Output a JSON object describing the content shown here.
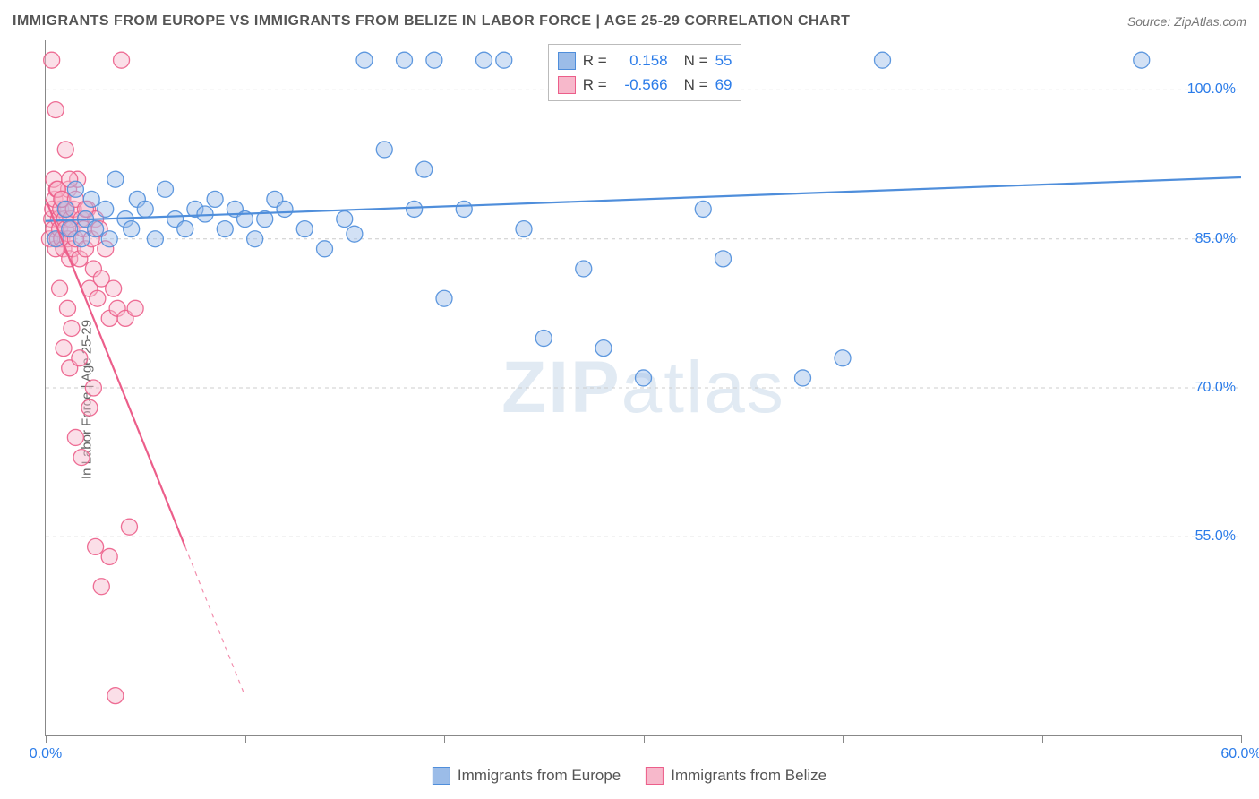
{
  "title": "IMMIGRANTS FROM EUROPE VS IMMIGRANTS FROM BELIZE IN LABOR FORCE | AGE 25-29 CORRELATION CHART",
  "source": "Source: ZipAtlas.com",
  "ylabel": "In Labor Force | Age 25-29",
  "watermark_a": "ZIP",
  "watermark_b": "atlas",
  "chart": {
    "type": "scatter-with-regression",
    "background_color": "#ffffff",
    "grid_color": "#cccccc",
    "axis_color": "#888888",
    "xlim": [
      0,
      60
    ],
    "ylim": [
      35,
      105
    ],
    "yticks": [
      55,
      70,
      85,
      100
    ],
    "ytick_labels": [
      "55.0%",
      "70.0%",
      "85.0%",
      "100.0%"
    ],
    "ytick_color": "#2b7ce9",
    "xticks": [
      0,
      30,
      60
    ],
    "xtick_labels": [
      "0.0%",
      "",
      "60.0%"
    ],
    "xtick_minor": [
      10,
      20,
      40,
      50
    ],
    "xtick_color": "#2b7ce9",
    "marker_radius": 9,
    "marker_opacity": 0.45,
    "line_width": 2.2,
    "label_fontsize": 15
  },
  "series_europe": {
    "name": "Immigrants from Europe",
    "color_fill": "#9bbce8",
    "color_stroke": "#4f8edb",
    "R": "0.158",
    "N": "55",
    "trend": {
      "x1": 0,
      "y1": 86.8,
      "x2": 60,
      "y2": 91.2
    },
    "points": [
      [
        0.5,
        85
      ],
      [
        1,
        88
      ],
      [
        1.2,
        86
      ],
      [
        1.5,
        90
      ],
      [
        1.8,
        85
      ],
      [
        2,
        87
      ],
      [
        2.3,
        89
      ],
      [
        2.5,
        86
      ],
      [
        3,
        88
      ],
      [
        3.2,
        85
      ],
      [
        3.5,
        91
      ],
      [
        4,
        87
      ],
      [
        4.3,
        86
      ],
      [
        4.6,
        89
      ],
      [
        5,
        88
      ],
      [
        5.5,
        85
      ],
      [
        6,
        90
      ],
      [
        6.5,
        87
      ],
      [
        7,
        86
      ],
      [
        7.5,
        88
      ],
      [
        8,
        87.5
      ],
      [
        8.5,
        89
      ],
      [
        9,
        86
      ],
      [
        9.5,
        88
      ],
      [
        10,
        87
      ],
      [
        10.5,
        85
      ],
      [
        11,
        87
      ],
      [
        11.5,
        89
      ],
      [
        12,
        88
      ],
      [
        13,
        86
      ],
      [
        14,
        84
      ],
      [
        15,
        87
      ],
      [
        15.5,
        85.5
      ],
      [
        16,
        103
      ],
      [
        17,
        94
      ],
      [
        18,
        103
      ],
      [
        18.5,
        88
      ],
      [
        19,
        92
      ],
      [
        19.5,
        103
      ],
      [
        20,
        79
      ],
      [
        21,
        88
      ],
      [
        22,
        103
      ],
      [
        23,
        103
      ],
      [
        24,
        86
      ],
      [
        25,
        75
      ],
      [
        26,
        103
      ],
      [
        27,
        82
      ],
      [
        28,
        74
      ],
      [
        30,
        71
      ],
      [
        33,
        88
      ],
      [
        34,
        83
      ],
      [
        38,
        71
      ],
      [
        40,
        73
      ],
      [
        42,
        103
      ],
      [
        55,
        103
      ]
    ]
  },
  "series_belize": {
    "name": "Immigrants from Belize",
    "color_fill": "#f7b8cb",
    "color_stroke": "#ec5e8a",
    "R": "-0.566",
    "N": "69",
    "trend": {
      "x1": 0,
      "y1": 89,
      "x2": 7,
      "y2": 54
    },
    "trend_ext": {
      "x1": 7,
      "y1": 54,
      "x2": 10,
      "y2": 39
    },
    "points": [
      [
        0.2,
        85
      ],
      [
        0.3,
        87
      ],
      [
        0.35,
        88
      ],
      [
        0.4,
        86
      ],
      [
        0.45,
        89
      ],
      [
        0.5,
        84
      ],
      [
        0.55,
        90
      ],
      [
        0.6,
        85
      ],
      [
        0.65,
        87
      ],
      [
        0.7,
        86
      ],
      [
        0.75,
        88
      ],
      [
        0.8,
        85
      ],
      [
        0.85,
        89
      ],
      [
        0.9,
        84
      ],
      [
        0.95,
        87
      ],
      [
        1,
        86
      ],
      [
        1.05,
        88
      ],
      [
        1.1,
        85
      ],
      [
        1.15,
        90
      ],
      [
        1.2,
        83
      ],
      [
        1.25,
        87
      ],
      [
        1.3,
        86
      ],
      [
        1.35,
        84
      ],
      [
        1.4,
        88
      ],
      [
        1.5,
        85
      ],
      [
        1.6,
        91
      ],
      [
        1.7,
        83
      ],
      [
        1.8,
        87
      ],
      [
        1.9,
        86
      ],
      [
        2,
        84
      ],
      [
        2.1,
        88
      ],
      [
        2.2,
        80
      ],
      [
        2.3,
        85
      ],
      [
        2.4,
        82
      ],
      [
        2.5,
        87
      ],
      [
        2.6,
        79
      ],
      [
        2.7,
        86
      ],
      [
        2.8,
        81
      ],
      [
        3,
        84
      ],
      [
        3.2,
        77
      ],
      [
        3.4,
        80
      ],
      [
        3.6,
        78
      ],
      [
        3.8,
        103
      ],
      [
        0.3,
        103
      ],
      [
        0.5,
        98
      ],
      [
        1,
        94
      ],
      [
        1.2,
        91
      ],
      [
        0.4,
        91
      ],
      [
        0.6,
        90
      ],
      [
        0.8,
        89
      ],
      [
        1.5,
        89
      ],
      [
        2,
        88
      ],
      [
        0.7,
        80
      ],
      [
        1.1,
        78
      ],
      [
        1.3,
        76
      ],
      [
        4,
        77
      ],
      [
        4.5,
        78
      ],
      [
        1.5,
        65
      ],
      [
        1.8,
        63
      ],
      [
        2.5,
        54
      ],
      [
        3.2,
        53
      ],
      [
        4.2,
        56
      ],
      [
        2.8,
        50
      ],
      [
        3.5,
        39
      ],
      [
        1.2,
        72
      ],
      [
        2.2,
        68
      ],
      [
        0.9,
        74
      ],
      [
        1.7,
        73
      ],
      [
        2.4,
        70
      ]
    ]
  },
  "legend_top": {
    "r_label": "R =",
    "n_label": "N ="
  }
}
